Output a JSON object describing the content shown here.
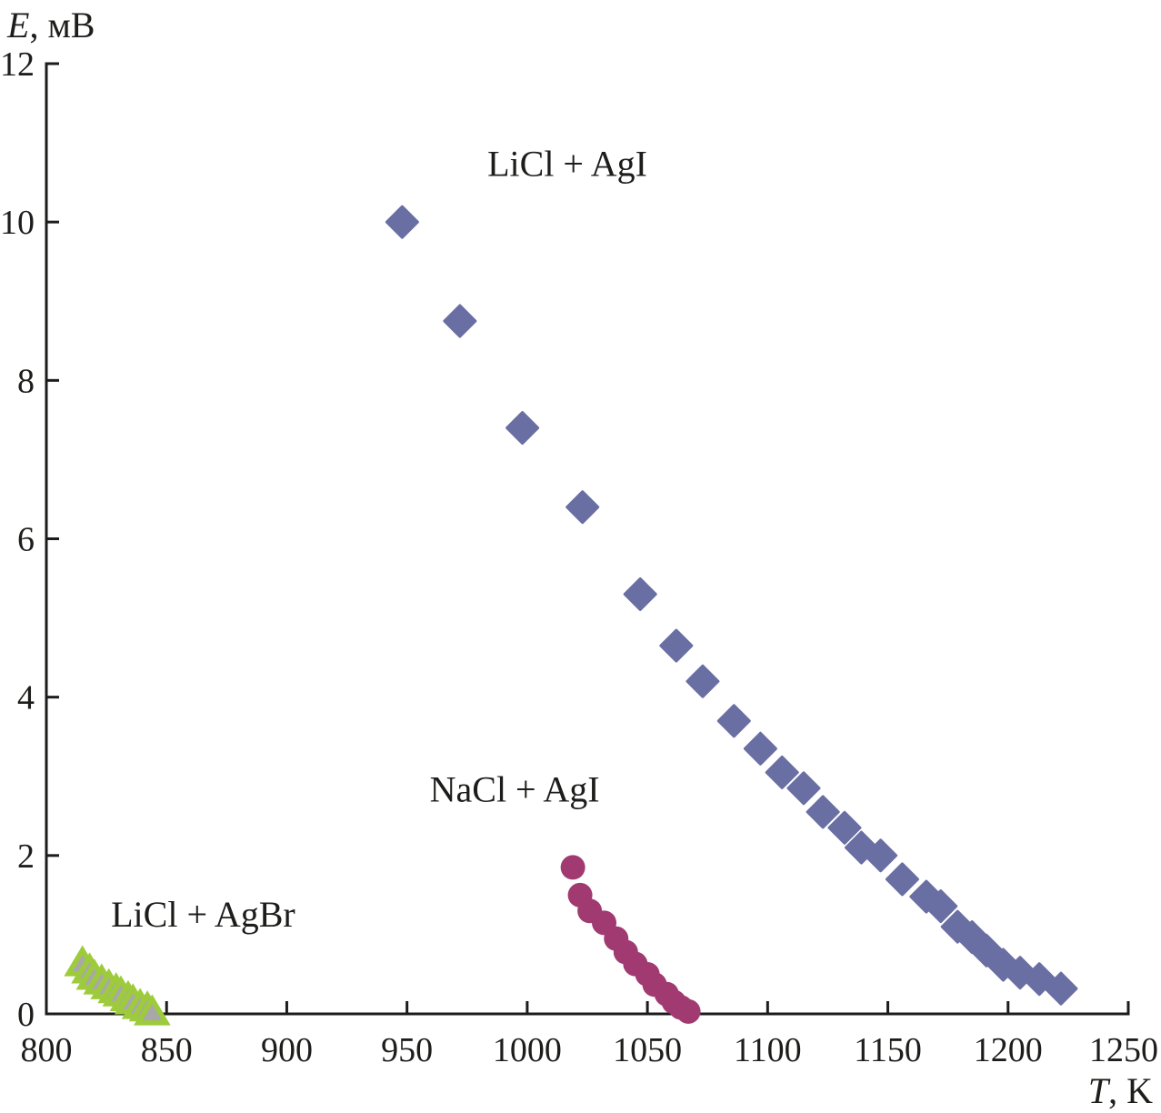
{
  "figure": {
    "background": "#ffffff",
    "axis_color": "#1c1c1b",
    "text_color": "#1d1d1b",
    "y_axis_title": {
      "symbol": "E",
      "unit": ", мВ"
    },
    "x_axis_title": {
      "symbol": "T",
      "unit": ", K"
    }
  },
  "chart_data": {
    "type": "scatter",
    "title": "",
    "xlabel": "T, K",
    "ylabel": "E, мВ",
    "xlim": [
      800,
      1250
    ],
    "ylim": [
      0,
      12
    ],
    "x_ticks": [
      800,
      850,
      900,
      950,
      1000,
      1050,
      1100,
      1150,
      1200,
      1250
    ],
    "y_ticks": [
      0,
      2,
      4,
      6,
      8,
      10,
      12
    ],
    "grid": false,
    "legend": "inline-annotations",
    "series": [
      {
        "name": "LiCl + AgI",
        "marker": "diamond",
        "color": "#696ea3",
        "label_at": [
          1016.7,
          10.58
        ],
        "points": [
          [
            948,
            10.0
          ],
          [
            972,
            8.75
          ],
          [
            998,
            7.4
          ],
          [
            1023,
            6.4
          ],
          [
            1047,
            5.3
          ],
          [
            1062,
            4.65
          ],
          [
            1073,
            4.2
          ],
          [
            1086,
            3.7
          ],
          [
            1097,
            3.35
          ],
          [
            1106,
            3.05
          ],
          [
            1115,
            2.85
          ],
          [
            1123,
            2.55
          ],
          [
            1132,
            2.35
          ],
          [
            1139,
            2.1
          ],
          [
            1147,
            2.0
          ],
          [
            1156,
            1.7
          ],
          [
            1166,
            1.48
          ],
          [
            1172,
            1.36
          ],
          [
            1179,
            1.1
          ],
          [
            1185,
            0.97
          ],
          [
            1191,
            0.8
          ],
          [
            1198,
            0.62
          ],
          [
            1205,
            0.52
          ],
          [
            1213,
            0.44
          ],
          [
            1222,
            0.32
          ]
        ]
      },
      {
        "name": "NaCl + AgI",
        "marker": "circle",
        "color": "#a03a71",
        "label_at": [
          994.8,
          2.68
        ],
        "points": [
          [
            1019,
            1.85
          ],
          [
            1022,
            1.5
          ],
          [
            1026,
            1.3
          ],
          [
            1032,
            1.15
          ],
          [
            1037,
            0.95
          ],
          [
            1041,
            0.78
          ],
          [
            1045,
            0.63
          ],
          [
            1050,
            0.5
          ],
          [
            1053,
            0.37
          ],
          [
            1058,
            0.25
          ],
          [
            1061,
            0.15
          ],
          [
            1064,
            0.08
          ],
          [
            1067,
            0.03
          ]
        ]
      },
      {
        "name": "LiCl + AgBr",
        "marker": "triangle",
        "color": "#9dcb3b",
        "fill": "#a8a8a8",
        "label_at": [
          865.2,
          1.1
        ],
        "points": [
          [
            815,
            0.65
          ],
          [
            818,
            0.56
          ],
          [
            820,
            0.48
          ],
          [
            823,
            0.42
          ],
          [
            826,
            0.36
          ],
          [
            829,
            0.31
          ],
          [
            831,
            0.27
          ],
          [
            834,
            0.21
          ],
          [
            836,
            0.17
          ],
          [
            839,
            0.11
          ],
          [
            842,
            0.08
          ],
          [
            844,
            0.03
          ]
        ]
      }
    ]
  }
}
